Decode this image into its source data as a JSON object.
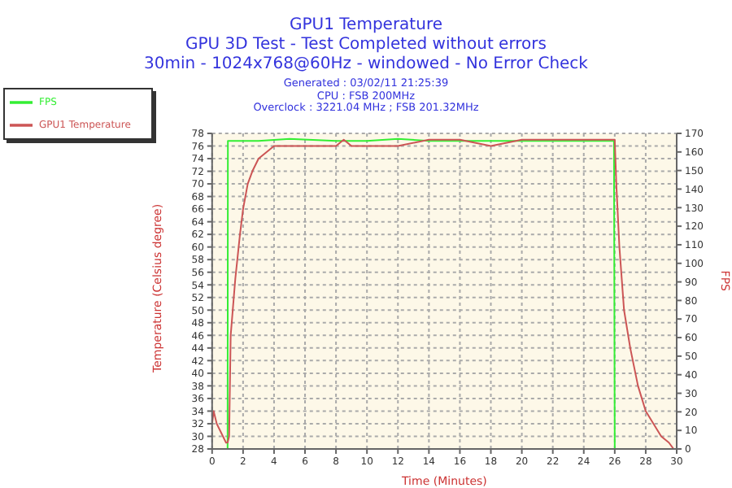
{
  "chart_data": {
    "type": "line",
    "title": "GPU1 Temperature",
    "subtitle": "GPU 3D Test - Test Completed without errors",
    "annotations": [
      "30min - 1024x768@60Hz - windowed - No Error Check",
      "Generated : 03/02/11 21:25:39",
      "CPU : FSB 200MHz",
      "Overclock : 3221.04 MHz ; FSB 201.32MHz"
    ],
    "xlabel": "Time (Minutes)",
    "ylabel": "Temperature (Celsius degree)",
    "y2label": "FPS",
    "xlim": [
      0,
      30
    ],
    "xticks": [
      0,
      2,
      4,
      6,
      8,
      10,
      12,
      14,
      16,
      18,
      20,
      22,
      24,
      26,
      28,
      30
    ],
    "ylim": [
      28,
      78
    ],
    "yticks": [
      28,
      30,
      32,
      34,
      36,
      38,
      40,
      42,
      44,
      46,
      48,
      50,
      52,
      54,
      56,
      58,
      60,
      62,
      64,
      66,
      68,
      70,
      72,
      74,
      76,
      78
    ],
    "y2lim": [
      0,
      170
    ],
    "y2ticks": [
      0,
      10,
      20,
      30,
      40,
      50,
      60,
      70,
      80,
      90,
      100,
      110,
      120,
      130,
      140,
      150,
      160,
      170
    ],
    "grid": true,
    "legend": "top left",
    "marker": "none",
    "line_style": "solid",
    "series": [
      {
        "name": "FPS",
        "color": "#33ee33",
        "axis": "y2",
        "x": [
          0,
          1,
          1.02,
          3,
          5,
          8,
          10,
          12,
          14,
          16,
          18,
          20,
          22,
          24,
          25.95,
          26,
          30
        ],
        "values": [
          0,
          0,
          166,
          166,
          167,
          166,
          166,
          167,
          166,
          166,
          166,
          166,
          166,
          166,
          166,
          0,
          0
        ]
      },
      {
        "name": "GPU1 Temperature",
        "color": "#cc5555",
        "x": [
          0,
          0.1,
          0.3,
          0.5,
          0.7,
          0.9,
          1.0,
          1.1,
          1.2,
          1.5,
          1.8,
          2,
          2.3,
          2.6,
          3,
          3.5,
          4,
          6,
          8,
          8.5,
          9,
          12,
          14,
          16,
          18,
          20,
          22,
          24,
          25.9,
          26,
          26.1,
          26.3,
          26.6,
          27,
          27.5,
          28,
          28.5,
          29,
          29.5,
          29.8,
          30
        ],
        "values": [
          32,
          34,
          32,
          31,
          30,
          29,
          29,
          30,
          46,
          55,
          62,
          66,
          70,
          72,
          74,
          75,
          76,
          76,
          76,
          77,
          76,
          76,
          77,
          77,
          76,
          77,
          77,
          77,
          77,
          77,
          70,
          60,
          50,
          44,
          38,
          34,
          32,
          30,
          29,
          28,
          28
        ]
      }
    ]
  }
}
